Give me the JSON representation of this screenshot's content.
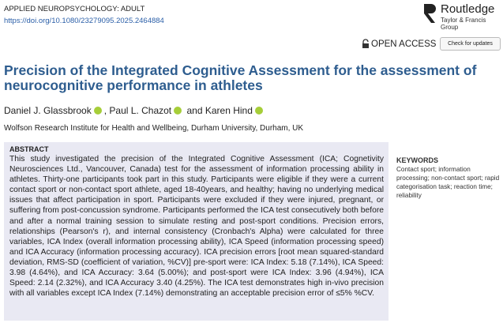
{
  "header": {
    "journal": "APPLIED NEUROPSYCHOLOGY: ADULT",
    "doi": "https://doi.org/10.1080/23279095.2025.2464884",
    "publisher": "Routledge",
    "publisher_group": "Taylor & Francis Group",
    "access": "OPEN ACCESS",
    "updates": "Check for updates"
  },
  "article": {
    "title": "Precision of the Integrated Cognitive Assessment for the assessment of neurocognitive performance in athletes",
    "authors": [
      "Daniel J. Glassbrook",
      "Paul L. Chazot",
      "Karen Hind"
    ],
    "separators": [
      ",",
      "and"
    ],
    "affiliation": "Wolfson Research Institute for Health and Wellbeing, Durham University, Durham, UK"
  },
  "abstract": {
    "heading": "ABSTRACT",
    "text": "This study investigated the precision of the Integrated Cognitive Assessment (ICA; Cognetivity Neurosciences Ltd., Vancouver, Canada) test for the assessment of information processing ability in athletes. Thirty-one participants took part in this study. Participants were eligible if they were a current contact sport or non-contact sport athlete, aged 18-40years, and healthy; having no underlying medical issues that affect participation in sport. Participants were excluded if they were injured, pregnant, or suffering from post-concussion syndrome. Participants performed the ICA test consecutively both before and after a normal training session to simulate resting and post-sport conditions. Precision errors, relationships (Pearson's r), and internal consistency (Cronbach's Alpha) were calculated for three variables, ICA Index (overall information processing ability), ICA Speed (information processing speed) and ICA Accuracy (information processing accuracy). ICA precision errors [root mean squared-standard deviation, RMS-SD (coefficient of variation, %CV)] pre-sport were: ICA Index: 5.18 (7.14%), ICA Speed: 3.98 (4.64%), and ICA Accuracy: 3.64 (5.00%); and post-sport were ICA Index: 3.96 (4.94%), ICA Speed: 2.14 (2.32%), and ICA Accuracy 3.40 (4.25%). The ICA test demonstrates high in-vivo precision with all variables except ICA Index (7.14%) demonstrating an acceptable precision error of ≤5% %CV."
  },
  "keywords": {
    "heading": "KEYWORDS",
    "text": "Contact sport; information processing; non-contact sport; rapid categorisation task; reaction time; reliability"
  }
}
